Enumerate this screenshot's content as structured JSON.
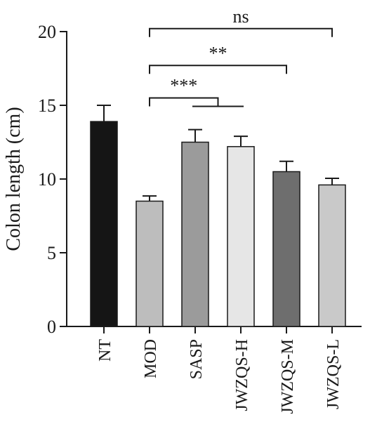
{
  "chart_data": {
    "type": "bar",
    "title": "",
    "xlabel": "",
    "ylabel": "Colon length (cm)",
    "ylim": [
      0,
      20
    ],
    "yticks": [
      0,
      5,
      10,
      15,
      20
    ],
    "ytick_labels": [
      "0",
      "5",
      "10",
      "15",
      "20"
    ],
    "grid": false,
    "categories": [
      "NT",
      "MOD",
      "SASP",
      "JWZQS-H",
      "JWZQS-M",
      "JWZQS-L"
    ],
    "values": [
      13.9,
      8.5,
      12.5,
      12.2,
      10.5,
      9.6
    ],
    "error": [
      1.1,
      0.35,
      0.85,
      0.7,
      0.7,
      0.45
    ],
    "colors": [
      "#151515",
      "#bdbdbd",
      "#9b9b9b",
      "#e6e6e6",
      "#6e6e6e",
      "#c9c9c9"
    ],
    "significance": [
      {
        "label": "***",
        "from": "MOD",
        "to": [
          "SASP",
          "JWZQS-H"
        ],
        "y": 15.5
      },
      {
        "label": "**",
        "from": "MOD",
        "to": "JWZQS-M",
        "y": 17.7
      },
      {
        "label": "ns",
        "from": "MOD",
        "to": "JWZQS-L",
        "y": 20.2
      }
    ]
  }
}
